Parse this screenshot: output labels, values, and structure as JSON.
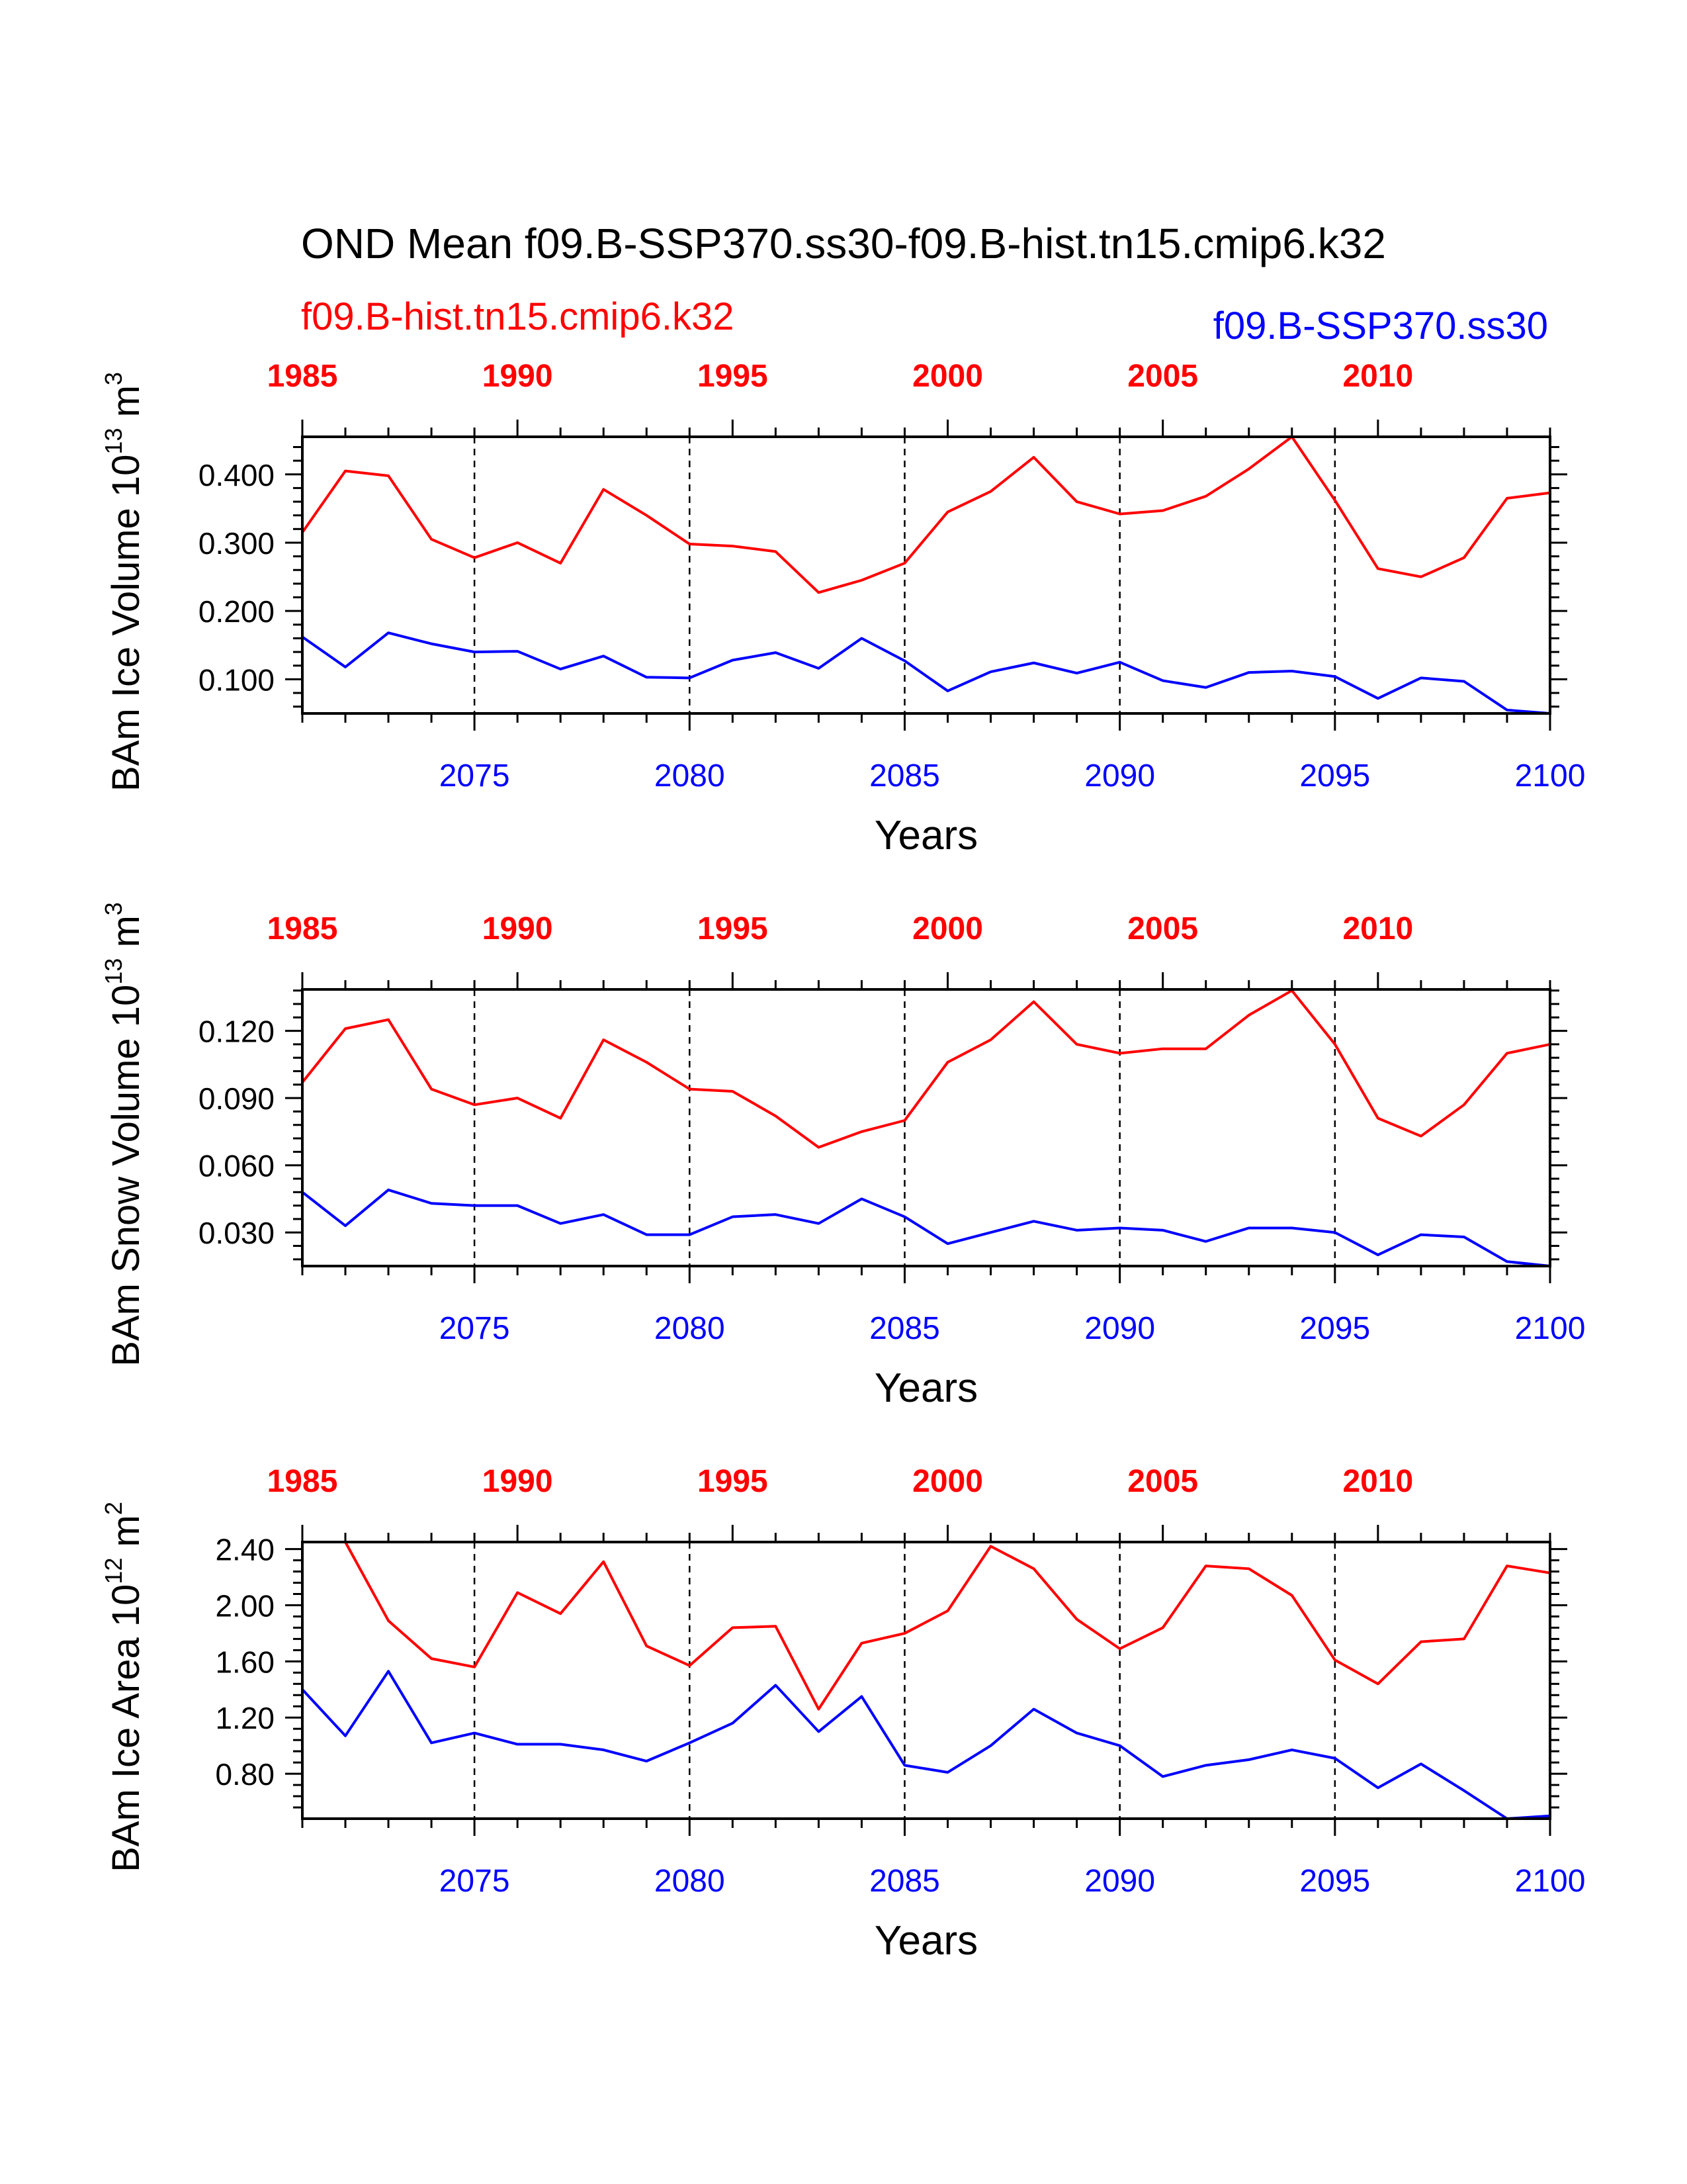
{
  "figure": {
    "title": "OND Mean f09.B-SSP370.ss30-f09.B-hist.tn15.cmip6.k32",
    "legend_hist": "f09.B-hist.tn15.cmip6.k32",
    "legend_ssp": "f09.B-SSP370.ss30",
    "colors": {
      "hist": "#ff0000",
      "ssp": "#0000ff",
      "axis": "#000000"
    }
  },
  "chart_data": [
    {
      "type": "line",
      "ylabel": "BAm Ice Volume 10",
      "ylabel_exp": "13",
      "ylabel_unit": " m",
      "ylabel_unit_exp": "3",
      "xlabel": "Years",
      "xlim": [
        2071,
        2100
      ],
      "ylim": [
        0.05,
        0.455
      ],
      "yticks": [
        "0.100",
        "0.200",
        "0.300",
        "0.400"
      ],
      "ytick_values": [
        0.1,
        0.2,
        0.3,
        0.4
      ],
      "ssp_year_ticks": [
        "2075",
        "2080",
        "2085",
        "2090",
        "2095",
        "2100"
      ],
      "hist_year_ticks": [
        "1985",
        "1990",
        "1995",
        "2000",
        "2005",
        "2010"
      ],
      "x": [
        2071,
        2072,
        2073,
        2074,
        2075,
        2076,
        2077,
        2078,
        2079,
        2080,
        2081,
        2082,
        2083,
        2084,
        2085,
        2086,
        2087,
        2088,
        2089,
        2090,
        2091,
        2092,
        2093,
        2094,
        2095,
        2096,
        2097,
        2098,
        2099,
        2100
      ],
      "series": [
        {
          "name": "f09.B-hist.tn15.cmip6.k32",
          "color": "#ff0000",
          "values": [
            0.315,
            0.405,
            0.398,
            0.305,
            0.278,
            0.3,
            0.27,
            0.378,
            0.34,
            0.298,
            0.295,
            0.287,
            0.227,
            0.245,
            0.27,
            0.345,
            0.375,
            0.425,
            0.36,
            0.342,
            0.347,
            0.368,
            0.408,
            0.455,
            0.362,
            0.262,
            0.25,
            0.278,
            0.365,
            0.373
          ]
        },
        {
          "name": "f09.B-SSP370.ss30",
          "color": "#0000ff",
          "values": [
            0.162,
            0.118,
            0.168,
            0.152,
            0.14,
            0.141,
            0.115,
            0.134,
            0.103,
            0.102,
            0.128,
            0.139,
            0.116,
            0.16,
            0.127,
            0.083,
            0.111,
            0.124,
            0.109,
            0.125,
            0.098,
            0.088,
            0.11,
            0.112,
            0.104,
            0.072,
            0.102,
            0.097,
            0.055,
            0.05
          ]
        }
      ]
    },
    {
      "type": "line",
      "ylabel": "BAm Snow Volume 10",
      "ylabel_exp": "13",
      "ylabel_unit": " m",
      "ylabel_unit_exp": "3",
      "xlabel": "Years",
      "xlim": [
        2071,
        2100
      ],
      "ylim": [
        0.015,
        0.1385
      ],
      "yticks": [
        "0.030",
        "0.060",
        "0.090",
        "0.120"
      ],
      "ytick_values": [
        0.03,
        0.06,
        0.09,
        0.12
      ],
      "ssp_year_ticks": [
        "2075",
        "2080",
        "2085",
        "2090",
        "2095",
        "2100"
      ],
      "hist_year_ticks": [
        "1985",
        "1990",
        "1995",
        "2000",
        "2005",
        "2010"
      ],
      "x": [
        2071,
        2072,
        2073,
        2074,
        2075,
        2076,
        2077,
        2078,
        2079,
        2080,
        2081,
        2082,
        2083,
        2084,
        2085,
        2086,
        2087,
        2088,
        2089,
        2090,
        2091,
        2092,
        2093,
        2094,
        2095,
        2096,
        2097,
        2098,
        2099,
        2100
      ],
      "series": [
        {
          "name": "f09.B-hist.tn15.cmip6.k32",
          "color": "#ff0000",
          "values": [
            0.097,
            0.121,
            0.125,
            0.094,
            0.087,
            0.09,
            0.081,
            0.116,
            0.106,
            0.094,
            0.093,
            0.082,
            0.068,
            0.075,
            0.08,
            0.106,
            0.116,
            0.133,
            0.114,
            0.11,
            0.112,
            0.112,
            0.127,
            0.138,
            0.114,
            0.081,
            0.073,
            0.087,
            0.11,
            0.114
          ]
        },
        {
          "name": "f09.B-SSP370.ss30",
          "color": "#0000ff",
          "values": [
            0.048,
            0.033,
            0.049,
            0.043,
            0.042,
            0.042,
            0.034,
            0.038,
            0.029,
            0.029,
            0.037,
            0.038,
            0.034,
            0.045,
            0.037,
            0.025,
            0.03,
            0.035,
            0.031,
            0.032,
            0.031,
            0.026,
            0.032,
            0.032,
            0.03,
            0.02,
            0.029,
            0.028,
            0.017,
            0.015
          ]
        }
      ]
    },
    {
      "type": "line",
      "ylabel": "BAm Ice Area 10",
      "ylabel_exp": "12",
      "ylabel_unit": " m",
      "ylabel_unit_exp": "2",
      "xlabel": "Years",
      "xlim": [
        2071,
        2100
      ],
      "ylim": [
        0.48,
        2.45
      ],
      "yticks": [
        "0.80",
        "1.20",
        "1.60",
        "2.00",
        "2.40"
      ],
      "ytick_values": [
        0.8,
        1.2,
        1.6,
        2.0,
        2.4
      ],
      "ssp_year_ticks": [
        "2075",
        "2080",
        "2085",
        "2090",
        "2095",
        "2100"
      ],
      "hist_year_ticks": [
        "1985",
        "1990",
        "1995",
        "2000",
        "2005",
        "2010"
      ],
      "x": [
        2071,
        2072,
        2073,
        2074,
        2075,
        2076,
        2077,
        2078,
        2079,
        2080,
        2081,
        2082,
        2083,
        2084,
        2085,
        2086,
        2087,
        2088,
        2089,
        2090,
        2091,
        2092,
        2093,
        2094,
        2095,
        2096,
        2097,
        2098,
        2099,
        2100
      ],
      "series": [
        {
          "name": "f09.B-hist.tn15.cmip6.k32",
          "color": "#ff0000",
          "values": [
            2.45,
            2.45,
            1.89,
            1.62,
            1.56,
            2.09,
            1.94,
            2.31,
            1.71,
            1.57,
            1.84,
            1.85,
            1.26,
            1.73,
            1.8,
            1.96,
            2.42,
            2.26,
            1.9,
            1.69,
            1.84,
            2.28,
            2.26,
            2.07,
            1.61,
            1.44,
            1.74,
            1.76,
            2.28,
            2.23
          ]
        },
        {
          "name": "f09.B-SSP370.ss30",
          "color": "#0000ff",
          "values": [
            1.4,
            1.07,
            1.53,
            1.02,
            1.09,
            1.01,
            1.01,
            0.97,
            0.89,
            1.02,
            1.16,
            1.43,
            1.1,
            1.35,
            0.86,
            0.81,
            1.0,
            1.26,
            1.09,
            1.0,
            0.78,
            0.86,
            0.9,
            0.97,
            0.91,
            0.7,
            0.87,
            0.68,
            0.48,
            0.5
          ]
        }
      ]
    }
  ]
}
